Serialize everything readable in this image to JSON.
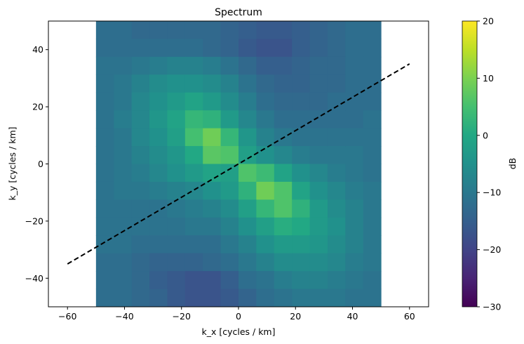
{
  "chart_data": {
    "type": "heatmap",
    "title": "Spectrum",
    "xlabel": "k_x [cycles / km]",
    "ylabel": "k_y [cycles / km]",
    "xlim": [
      -66.7,
      66.7
    ],
    "ylim": [
      -50,
      50
    ],
    "xticks": [
      -60,
      -40,
      -20,
      0,
      20,
      40,
      60
    ],
    "yticks": [
      -40,
      -20,
      0,
      20,
      40
    ],
    "grid": false,
    "colormap": "viridis",
    "heatmap": {
      "x_extent": [
        -50,
        50
      ],
      "y_extent": [
        -50,
        50
      ],
      "rows_top_to_bottom": [
        [
          -12,
          -12,
          -13,
          -13,
          -13,
          -13,
          -13,
          -14,
          -15,
          -16,
          -16,
          -15,
          -14,
          -13,
          -12,
          -12
        ],
        [
          -12,
          -12,
          -12,
          -12,
          -12,
          -12,
          -13,
          -14,
          -16,
          -17,
          -17,
          -15,
          -14,
          -13,
          -12,
          -12
        ],
        [
          -11,
          -11,
          -10,
          -9,
          -8,
          -8,
          -9,
          -11,
          -13,
          -15,
          -15,
          -14,
          -13,
          -13,
          -12,
          -12
        ],
        [
          -11,
          -10,
          -8,
          -6,
          -5,
          -5,
          -6,
          -8,
          -11,
          -13,
          -14,
          -14,
          -13,
          -13,
          -12,
          -12
        ],
        [
          -11,
          -10,
          -7,
          -5,
          -3,
          -1,
          -3,
          -6,
          -9,
          -12,
          -13,
          -13,
          -13,
          -12,
          -12,
          -12
        ],
        [
          -11,
          -9,
          -7,
          -4,
          -1,
          3,
          2,
          -3,
          -7,
          -10,
          -12,
          -12,
          -12,
          -12,
          -12,
          -11
        ],
        [
          -11,
          -10,
          -7,
          -5,
          -2,
          5,
          9,
          3,
          -4,
          -8,
          -10,
          -11,
          -11,
          -11,
          -11,
          -11
        ],
        [
          -11,
          -10,
          -8,
          -6,
          -4,
          0,
          7,
          6,
          -2,
          -5,
          -7,
          -9,
          -10,
          -10,
          -10,
          -11
        ],
        [
          -11,
          -10,
          -9,
          -7,
          -5,
          -3,
          -1,
          -2,
          6,
          4,
          -1,
          -5,
          -7,
          -9,
          -10,
          -11
        ],
        [
          -11,
          -10,
          -10,
          -9,
          -8,
          -7,
          -5,
          -3,
          2,
          9,
          6,
          -1,
          -5,
          -7,
          -9,
          -10
        ],
        [
          -11,
          -11,
          -11,
          -11,
          -10,
          -9,
          -8,
          -6,
          -2,
          3,
          6,
          2,
          -3,
          -6,
          -8,
          -10
        ],
        [
          -11,
          -11,
          -11,
          -11,
          -11,
          -10,
          -10,
          -8,
          -5,
          -2,
          1,
          0,
          -3,
          -5,
          -8,
          -10
        ],
        [
          -11,
          -11,
          -12,
          -12,
          -12,
          -12,
          -12,
          -10,
          -8,
          -5,
          -3,
          -3,
          -4,
          -6,
          -8,
          -10
        ],
        [
          -12,
          -12,
          -13,
          -14,
          -14,
          -14,
          -13,
          -12,
          -10,
          -8,
          -6,
          -6,
          -6,
          -7,
          -9,
          -10
        ],
        [
          -12,
          -12,
          -13,
          -15,
          -16,
          -17,
          -17,
          -15,
          -12,
          -11,
          -9,
          -8,
          -8,
          -9,
          -10,
          -11
        ],
        [
          -12,
          -12,
          -13,
          -14,
          -16,
          -17,
          -17,
          -16,
          -14,
          -12,
          -11,
          -10,
          -10,
          -10,
          -11,
          -11
        ]
      ]
    },
    "line": {
      "style": "dashed",
      "color": "#000000",
      "x": [
        -60,
        60
      ],
      "y": [
        -35,
        35
      ]
    },
    "colorbar": {
      "label": "dB",
      "range": [
        -30,
        20
      ],
      "ticks": [
        20,
        10,
        0,
        -10,
        -20,
        -30
      ]
    }
  }
}
